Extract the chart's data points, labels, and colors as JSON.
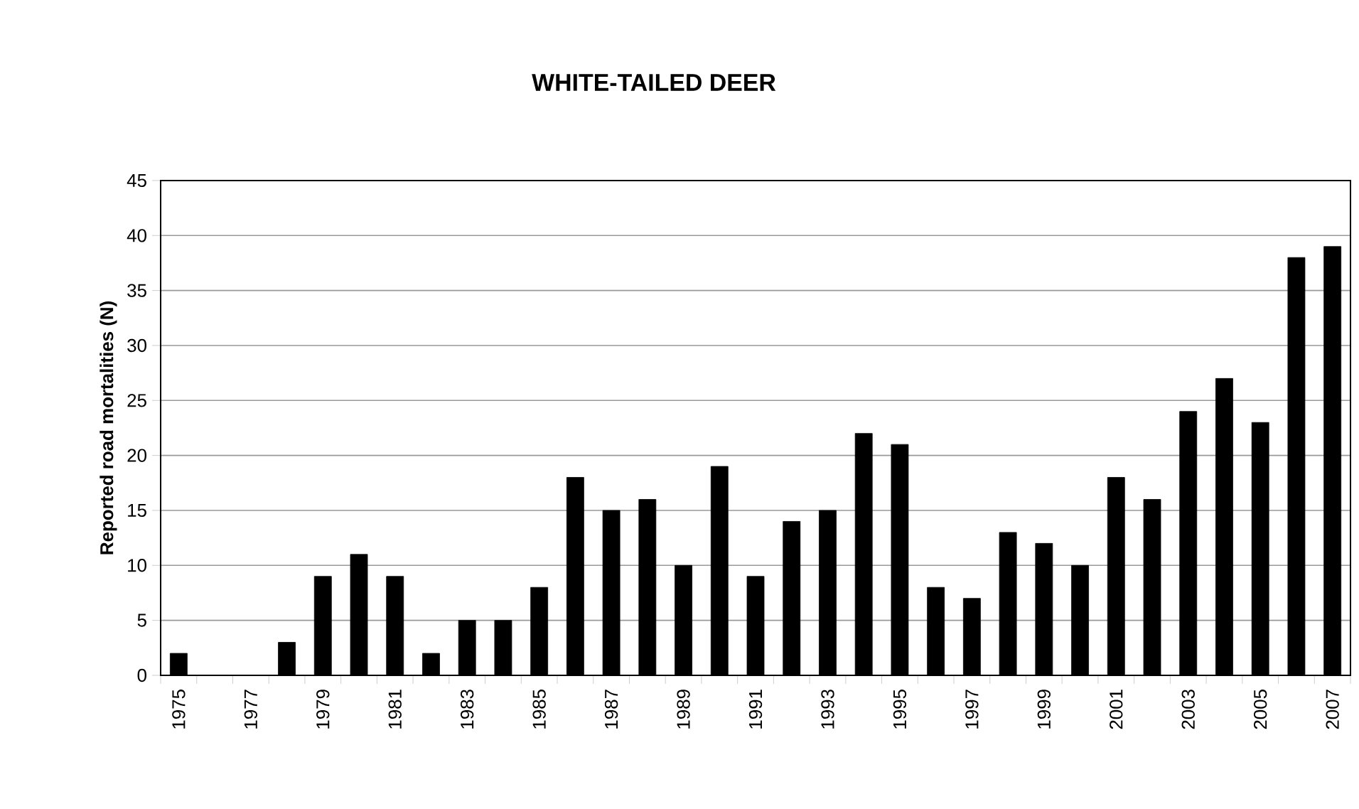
{
  "chart_data": {
    "type": "bar",
    "title": "WHITE-TAILED DEER",
    "ylabel": "Reported road mortalities (N)",
    "categories": [
      "1975",
      null,
      "1977",
      null,
      "1979",
      null,
      "1981",
      null,
      "1983",
      null,
      "1985",
      null,
      "1987",
      null,
      "1989",
      null,
      "1991",
      null,
      "1993",
      null,
      "1995",
      null,
      "1997",
      null,
      "1999",
      null,
      "2001",
      null,
      "2003",
      null,
      "2005",
      null,
      "2007"
    ],
    "values": [
      2,
      0,
      0,
      3,
      9,
      11,
      9,
      2,
      5,
      5,
      8,
      18,
      15,
      16,
      10,
      19,
      9,
      14,
      15,
      22,
      21,
      8,
      7,
      13,
      12,
      10,
      18,
      16,
      24,
      27,
      23,
      38,
      39
    ],
    "color": "#000000",
    "ylim": [
      0,
      45
    ],
    "yticks": [
      0,
      5,
      10,
      15,
      20,
      25,
      30,
      35,
      40,
      45
    ],
    "grid": "y"
  }
}
